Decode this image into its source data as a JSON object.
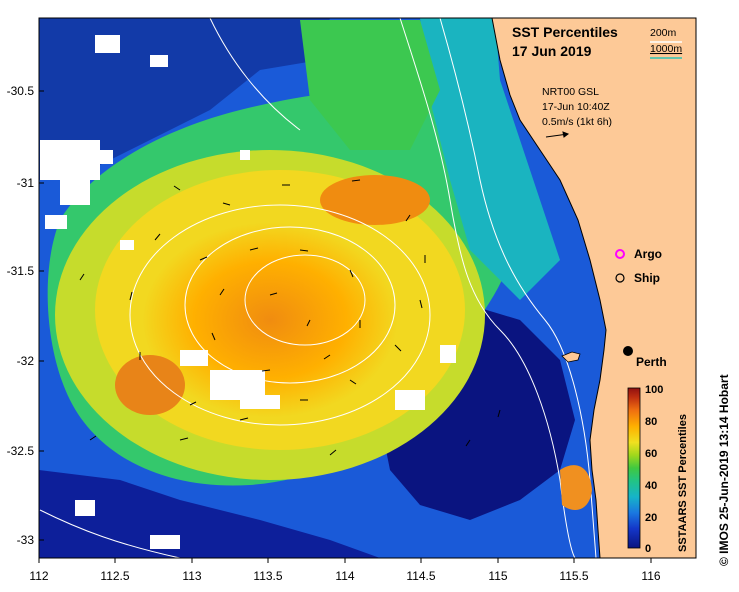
{
  "title": {
    "line1": "SST Percentiles",
    "line2": "17 Jun 2019"
  },
  "depth_legend": {
    "contour_1": "200m",
    "contour_2": "1000m",
    "contour_2_color": "#2ec4b6"
  },
  "current_info": {
    "line1": "NRT00 GSL",
    "line2": "17-Jun 10:40Z",
    "scale": "0.5m/s (1kt 6h)"
  },
  "markers": {
    "argo_label": "Argo",
    "ship_label": "Ship",
    "city_label": "Perth"
  },
  "axes": {
    "x_ticks": [
      "112",
      "112.5",
      "113",
      "113.5",
      "114",
      "114.5",
      "115",
      "115.5",
      "116"
    ],
    "y_ticks": [
      "-30.5",
      "-31",
      "-31.5",
      "-32",
      "-32.5",
      "-33"
    ]
  },
  "colorbar": {
    "title": "SSTAARS SST Percentiles",
    "ticks": [
      "100",
      "80",
      "60",
      "40",
      "20",
      "0"
    ]
  },
  "credit": "© IMOS 25-Jun-2019 13:14 Hobart",
  "colors": {
    "land": "#fdc997",
    "deep_blue": "#0a1480",
    "argo": "#ff00ff"
  }
}
